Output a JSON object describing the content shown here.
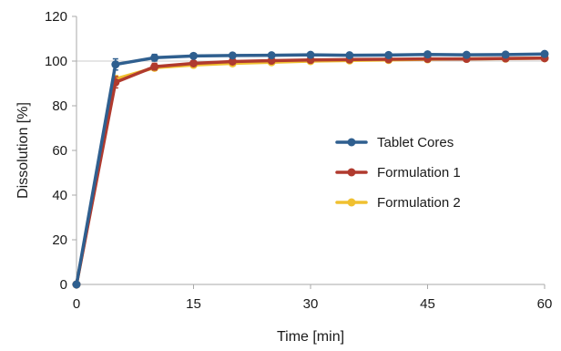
{
  "chart_data": {
    "type": "line",
    "title": "",
    "xlabel": "Time  [min]",
    "ylabel": "Dissolution  [%]",
    "xlim": [
      0,
      60
    ],
    "ylim": [
      0,
      120
    ],
    "xticks": [
      0,
      15,
      30,
      45,
      60
    ],
    "yticks": [
      0,
      20,
      40,
      60,
      80,
      100,
      120
    ],
    "grid": "horizontal-at-100",
    "legend_position": "center-right",
    "series": [
      {
        "name": "Tablet Cores",
        "color": "#2f5f8f",
        "x": [
          0,
          5,
          10,
          15,
          20,
          25,
          30,
          35,
          40,
          45,
          50,
          55,
          60
        ],
        "y": [
          0,
          98.5,
          101.5,
          102.3,
          102.5,
          102.6,
          102.8,
          102.6,
          102.7,
          103.0,
          102.8,
          102.9,
          103.2
        ],
        "error": [
          0,
          2.5,
          1.5,
          1.0,
          0.8,
          0.6,
          0.5,
          0.5,
          0.5,
          0.5,
          0.5,
          0.5,
          0.5
        ]
      },
      {
        "name": "Formulation 1",
        "color": "#b03a2e",
        "x": [
          0,
          5,
          10,
          15,
          20,
          25,
          30,
          35,
          40,
          45,
          50,
          55,
          60
        ],
        "y": [
          0,
          90.5,
          97.5,
          99.0,
          99.8,
          100.2,
          100.5,
          100.7,
          100.8,
          101.0,
          101.0,
          101.2,
          101.3
        ],
        "error": [
          0,
          2.5,
          1.5,
          1.0,
          0.8,
          0.6,
          0.5,
          0.5,
          0.5,
          0.5,
          0.5,
          0.5,
          0.5
        ]
      },
      {
        "name": "Formulation 2",
        "color": "#f0c030",
        "x": [
          0,
          5,
          10,
          15,
          20,
          25,
          30,
          35,
          40,
          45,
          50,
          55,
          60
        ],
        "y": [
          0,
          92.0,
          97.0,
          98.3,
          99.0,
          99.5,
          100.0,
          100.3,
          100.5,
          100.8,
          101.0,
          101.1,
          101.3
        ],
        "error": [
          0,
          1.5,
          1.0,
          0.8,
          0.6,
          0.5,
          0.5,
          0.5,
          0.5,
          0.5,
          0.5,
          0.5,
          0.5
        ]
      }
    ]
  }
}
